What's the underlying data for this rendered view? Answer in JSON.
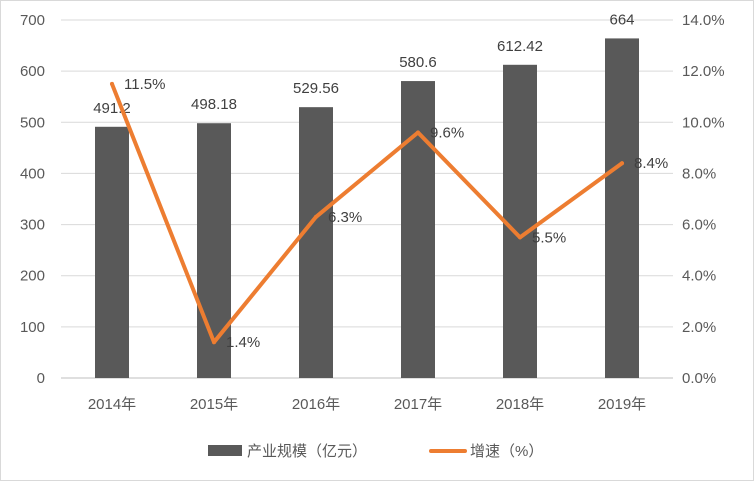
{
  "chart_data": {
    "type": "bar",
    "categories": [
      "2014年",
      "2015年",
      "2016年",
      "2017年",
      "2018年",
      "2019年"
    ],
    "series": [
      {
        "name": "产业规模（亿元）",
        "type": "bar",
        "axis": "left",
        "values": [
          491.2,
          498.18,
          529.56,
          580.6,
          612.42,
          664
        ],
        "labels": [
          "491.2",
          "498.18",
          "529.56",
          "580.6",
          "612.42",
          "664"
        ],
        "color": "#595959"
      },
      {
        "name": "增速（%）",
        "type": "line",
        "axis": "right",
        "values": [
          11.5,
          1.4,
          6.3,
          9.6,
          5.5,
          8.4
        ],
        "labels": [
          "11.5%",
          "1.4%",
          "6.3%",
          "9.6%",
          "5.5%",
          "8.4%"
        ],
        "color": "#ed7d31"
      }
    ],
    "y_left": {
      "lim": [
        0,
        700
      ],
      "ticks": [
        "0",
        "100",
        "200",
        "300",
        "400",
        "500",
        "600",
        "700"
      ]
    },
    "y_right": {
      "lim": [
        0,
        14
      ],
      "ticks": [
        "0.0%",
        "2.0%",
        "4.0%",
        "6.0%",
        "8.0%",
        "10.0%",
        "12.0%",
        "14.0%"
      ]
    },
    "grid": true,
    "legend_position": "bottom"
  }
}
